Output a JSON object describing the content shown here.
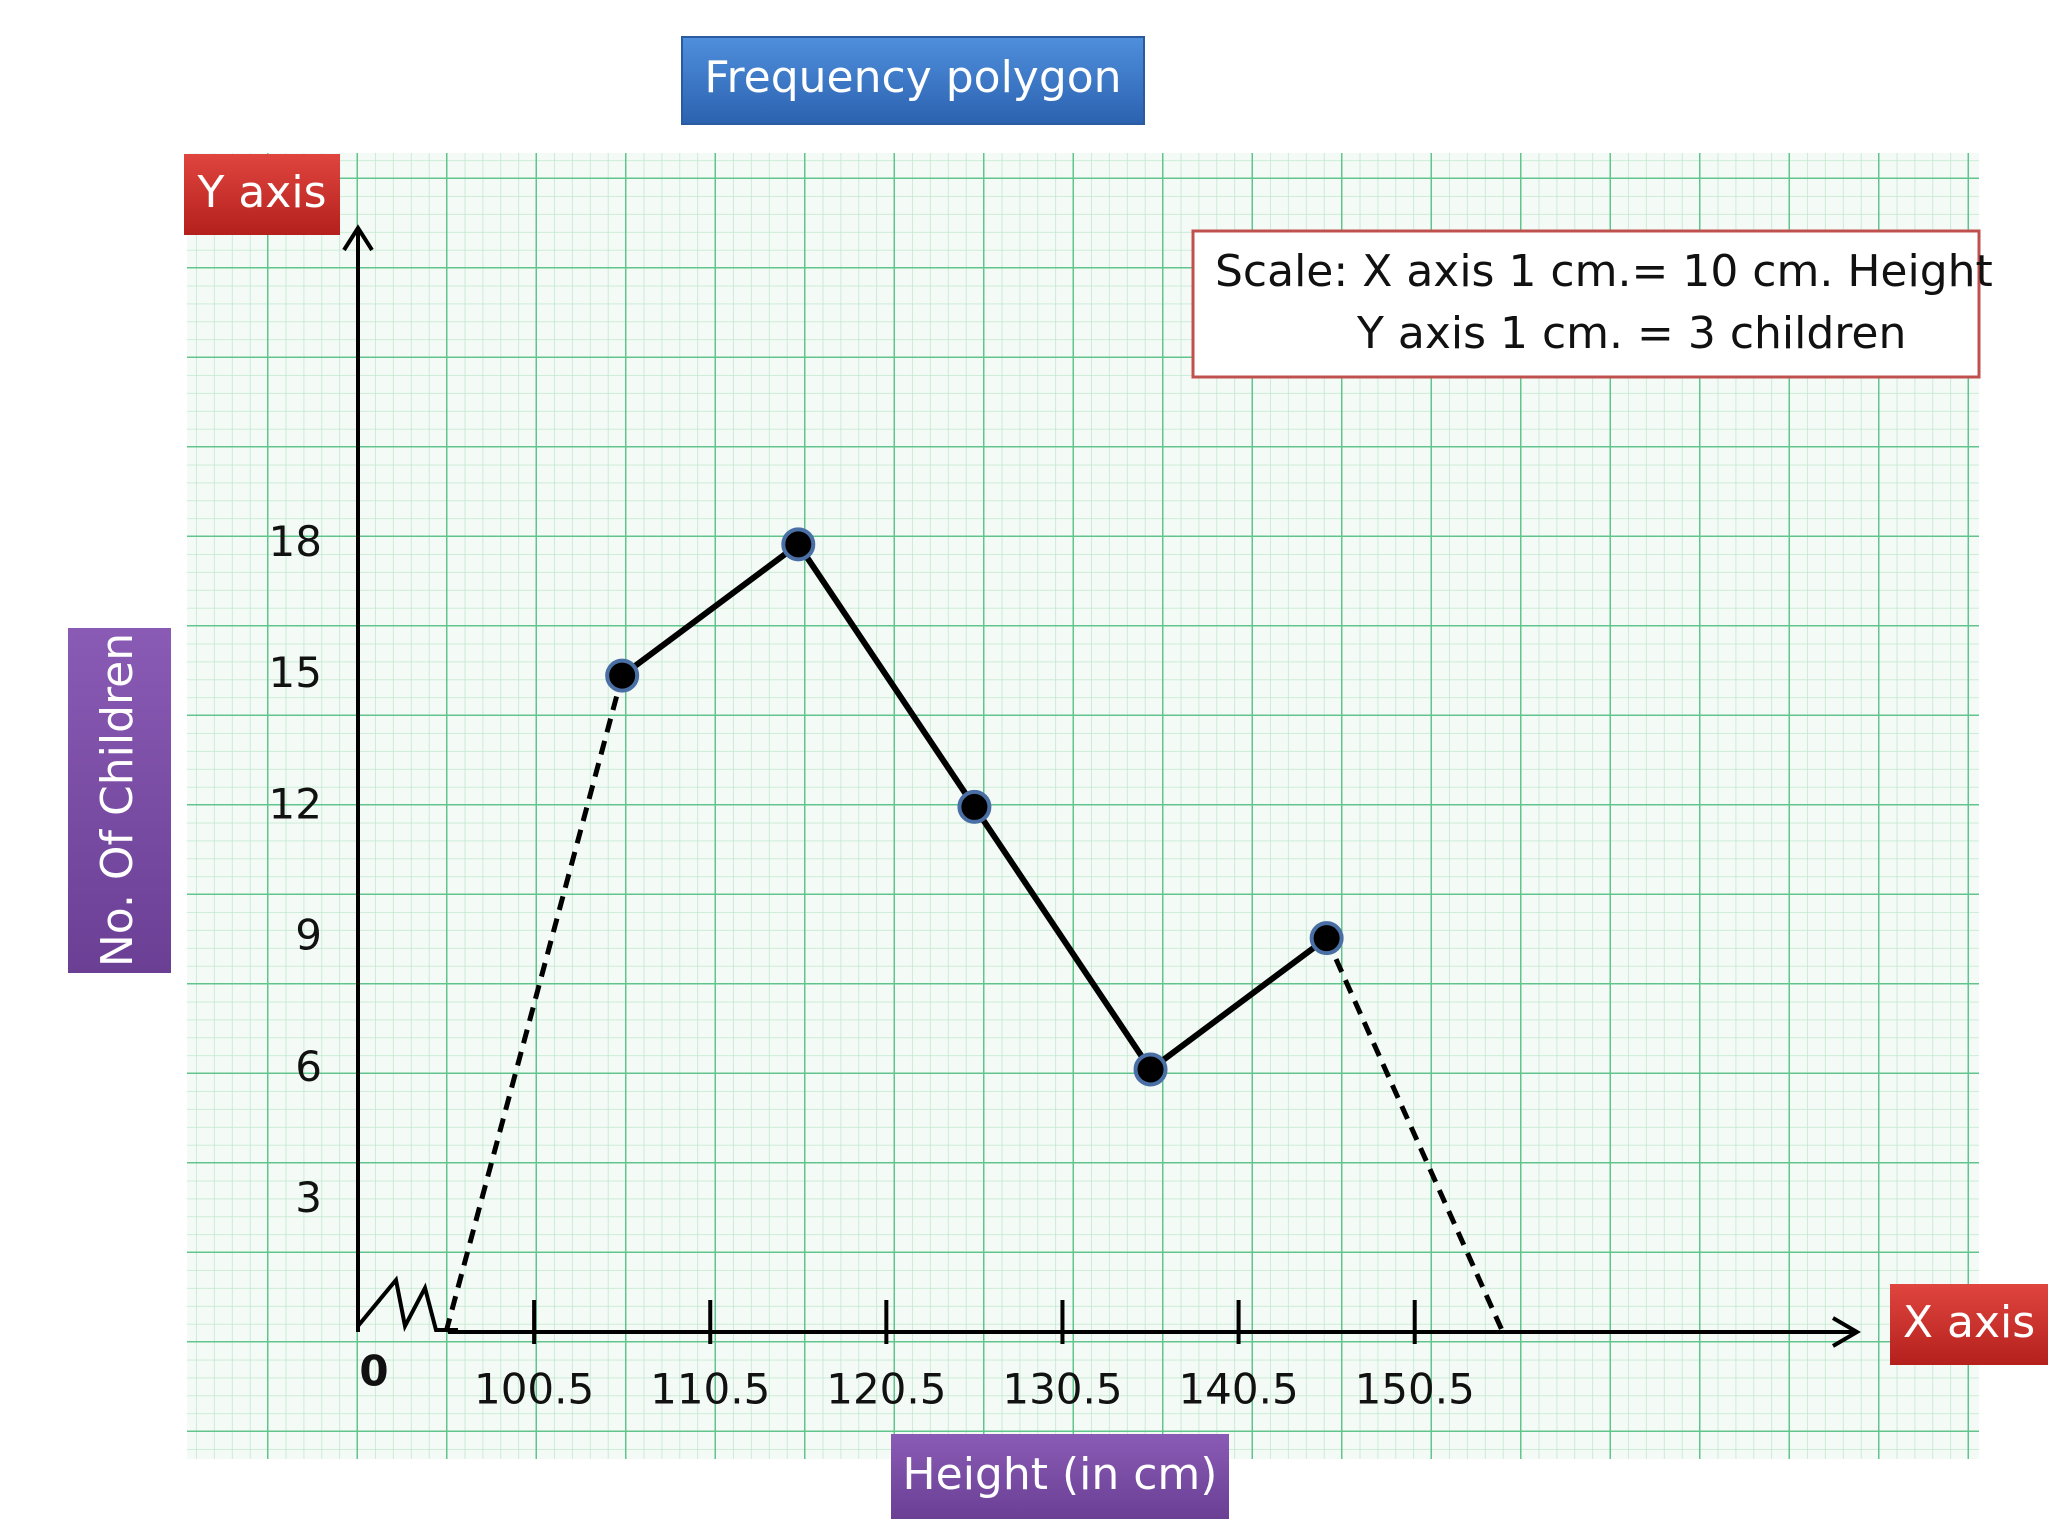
{
  "title": "Frequency polygon",
  "y_axis_tag": "Y axis",
  "x_axis_tag": "X axis",
  "scale_note": [
    "Scale: X axis 1 cm.= 10 cm. Height",
    "Y axis 1 cm. = 3 children"
  ],
  "chart_data": {
    "type": "line",
    "x_label": "Height (in cm)",
    "y_label": "No. Of Children",
    "origin_label": "0",
    "x": [
      95.5,
      105.5,
      115.5,
      125.5,
      135.5,
      145.5,
      155.5
    ],
    "series": [
      {
        "color": "#000000",
        "values": [
          0,
          15,
          18,
          12,
          6,
          9,
          0
        ]
      }
    ],
    "xlim": [
      90.5,
      175.5
    ],
    "ylim": [
      0,
      25
    ],
    "xticks": [
      100.5,
      110.5,
      120.5,
      130.5,
      140.5,
      150.5
    ],
    "yticks": [
      3,
      6,
      9,
      12,
      15,
      18
    ]
  }
}
